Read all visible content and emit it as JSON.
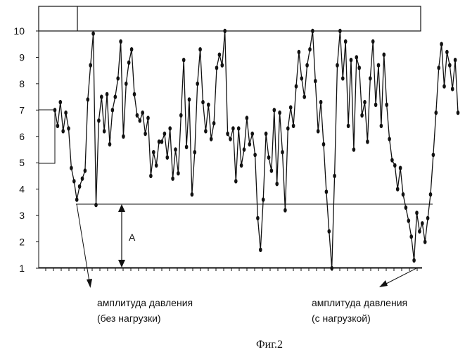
{
  "chart_data": {
    "type": "line",
    "title": "",
    "xlabel": "",
    "ylabel": "",
    "ylim": [
      1,
      10
    ],
    "yticks": [
      "1",
      "2",
      "3",
      "4",
      "5",
      "6",
      "7",
      "8",
      "9",
      "10"
    ],
    "grid": false,
    "x_unlabeled": true,
    "series_count": 1,
    "values": [
      7.0,
      6.4,
      7.3,
      6.2,
      6.9,
      6.3,
      4.8,
      4.3,
      3.6,
      4.1,
      4.4,
      4.7,
      7.4,
      8.7,
      9.9,
      3.4,
      6.6,
      7.5,
      6.2,
      7.6,
      5.7,
      7.0,
      7.5,
      8.2,
      9.6,
      6.0,
      8.0,
      8.8,
      9.3,
      7.6,
      6.8,
      6.6,
      6.9,
      6.1,
      6.7,
      4.5,
      5.4,
      4.9,
      5.8,
      5.8,
      6.1,
      5.2,
      6.3,
      4.4,
      5.5,
      4.6,
      6.8,
      8.9,
      5.6,
      7.4,
      3.8,
      5.4,
      8.0,
      9.3,
      7.3,
      6.2,
      7.2,
      5.9,
      6.5,
      8.6,
      9.1,
      8.7,
      10.0,
      6.1,
      5.9,
      6.3,
      4.3,
      6.3,
      4.9,
      5.5,
      6.7,
      5.7,
      6.1,
      5.3,
      2.9,
      1.7,
      3.6,
      6.1,
      5.2,
      4.7,
      7.0,
      4.2,
      6.9,
      5.4,
      3.2,
      6.3,
      7.1,
      6.4,
      7.9,
      9.2,
      8.2,
      7.5,
      8.7,
      9.3,
      10.0,
      8.1,
      6.2,
      7.3,
      5.7,
      3.9,
      2.4,
      1.0,
      4.5,
      8.7,
      10.0,
      8.2,
      9.6,
      6.4,
      8.9,
      5.5,
      9.0,
      8.6,
      6.8,
      7.3,
      5.8,
      8.2,
      9.6,
      7.2,
      8.7,
      6.4,
      9.1,
      7.2,
      5.9,
      5.1,
      4.9,
      4.0,
      4.8,
      3.8,
      3.3,
      2.8,
      2.2,
      1.3,
      3.1,
      2.4,
      2.7,
      2.0,
      2.9,
      3.8,
      5.3,
      6.9,
      8.6,
      9.5,
      7.9,
      9.2,
      8.7,
      7.8,
      8.9,
      6.9
    ]
  },
  "annotation": {
    "amplitude_label": "A",
    "left_label_line1": "амплитуда давления",
    "left_label_line2": "(без нагрузки)",
    "right_label_line1": "амплитуда давления",
    "right_label_line2": "(с нагрузкой)"
  },
  "caption": "Фиг.2",
  "colors": {
    "line": "#111111",
    "background": "#ffffff"
  }
}
